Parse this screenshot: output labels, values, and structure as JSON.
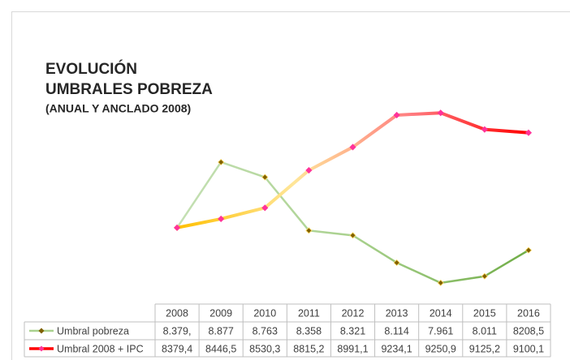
{
  "chart_data": {
    "type": "line",
    "title": [
      "EVOLUCIÓN",
      "UMBRALES POBREZA"
    ],
    "subtitle": "(ANUAL Y ANCLADO 2008)",
    "categories": [
      "2008",
      "2009",
      "2010",
      "2011",
      "2012",
      "2013",
      "2014",
      "2015",
      "2016"
    ],
    "ylim": [
      7800,
      9400
    ],
    "series": [
      {
        "name": "Umbral pobreza",
        "color": "#a9d18e",
        "gradient": [
          "#c5e0b4",
          "#a9d18e",
          "#70ad47"
        ],
        "marker_color": "#7f6000",
        "values": [
          8379,
          8877,
          8763,
          8358,
          8321,
          8114,
          7961,
          8011,
          8208.5
        ],
        "value_labels": [
          "8.379,",
          "8.877",
          "8.763",
          "8.358",
          "8.321",
          "8.114",
          "7.961",
          "8.011",
          "8208,5"
        ]
      },
      {
        "name": "Umbral 2008 + IPC",
        "color": "#ff0000",
        "gradient": [
          "#ffc000",
          "#ffe699",
          "#ff7c80",
          "#ff0000"
        ],
        "marker_color": "#ff3399",
        "values": [
          8379.4,
          8446.5,
          8530.3,
          8815.2,
          8991.1,
          9234.1,
          9250.9,
          9125.2,
          9100.1
        ],
        "value_labels": [
          "8379,4",
          "8446,5",
          "8530,3",
          "8815,2",
          "8991,1",
          "9234,1",
          "9250,9",
          "9125,2",
          "9100,1"
        ]
      }
    ]
  }
}
